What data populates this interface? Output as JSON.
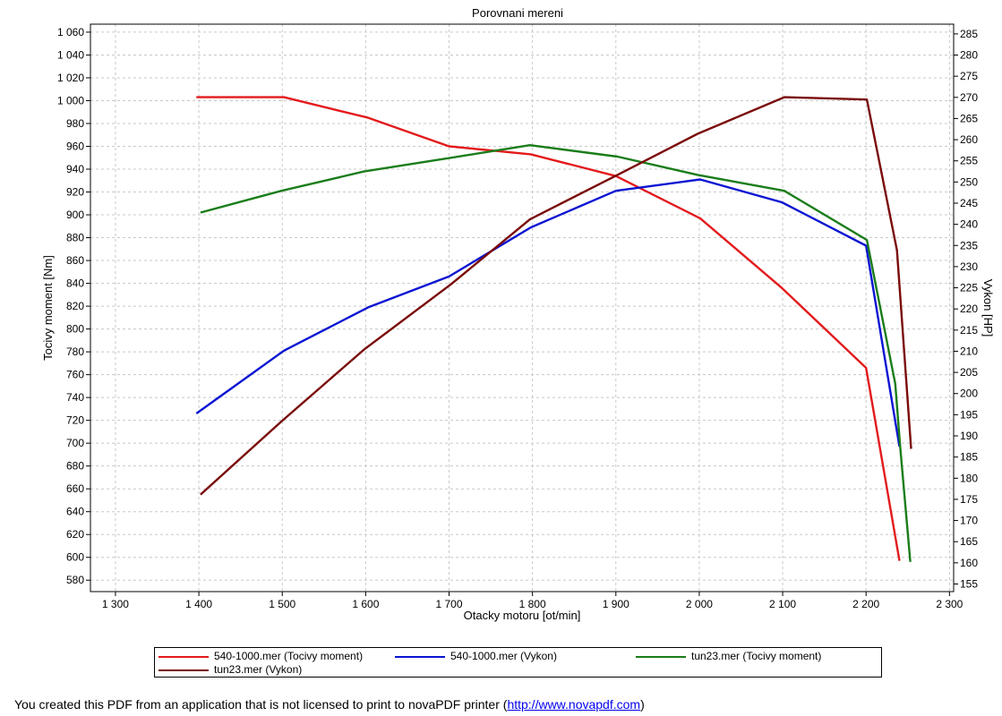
{
  "chart_data": {
    "type": "line",
    "title": "Porovnani mereni",
    "xlabel": "Otacky motoru [ot/min]",
    "ylabel_left": "Tocivy moment [Nm]",
    "ylabel_right": "Vykon [HP]",
    "xlim": [
      1270,
      2305
    ],
    "ylim_left": [
      570,
      1067
    ],
    "ylim_right": [
      153.2,
      287.3
    ],
    "x_ticks": [
      1300,
      1400,
      1500,
      1600,
      1700,
      1800,
      1900,
      2000,
      2100,
      2200,
      2300
    ],
    "x_tick_labels": [
      "1 300",
      "1 400",
      "1 500",
      "1 600",
      "1 700",
      "1 800",
      "1 900",
      "2 000",
      "2 100",
      "2 200",
      "2 300"
    ],
    "y_left_ticks": [
      580,
      600,
      620,
      640,
      660,
      680,
      700,
      720,
      740,
      760,
      780,
      800,
      820,
      840,
      860,
      880,
      900,
      920,
      940,
      960,
      980,
      1000,
      1020,
      1040,
      1060
    ],
    "y_left_tick_labels": [
      "580",
      "600",
      "620",
      "640",
      "660",
      "680",
      "700",
      "720",
      "740",
      "760",
      "780",
      "800",
      "820",
      "840",
      "860",
      "880",
      "900",
      "920",
      "940",
      "960",
      "980",
      "1 000",
      "1 020",
      "1 040",
      "1 060"
    ],
    "y_right_ticks": [
      155,
      160,
      165,
      170,
      175,
      180,
      185,
      190,
      195,
      200,
      205,
      210,
      215,
      220,
      225,
      230,
      235,
      240,
      245,
      250,
      255,
      260,
      265,
      270,
      275,
      280,
      285
    ],
    "y_right_tick_labels": [
      "155",
      "160",
      "165",
      "170",
      "175",
      "180",
      "185",
      "190",
      "195",
      "200",
      "205",
      "210",
      "215",
      "220",
      "225",
      "230",
      "235",
      "240",
      "245",
      "250",
      "255",
      "260",
      "265",
      "270",
      "275",
      "280",
      "285"
    ],
    "grid": true,
    "legend_position": "bottom",
    "series": [
      {
        "name": "540-1000.mer  (Tocivy moment)",
        "axis": "left",
        "color": "#e31a1c",
        "x": [
          1397,
          1502,
          1603,
          1700,
          1798,
          1900,
          2001,
          2099,
          2200,
          2240
        ],
        "y": [
          1003,
          1003,
          985,
          960,
          953,
          934,
          897,
          836,
          766,
          597
        ]
      },
      {
        "name": "540-1000.mer  (Vykon)",
        "axis": "left",
        "color": "#0a14d2",
        "x": [
          1397,
          1502,
          1603,
          1700,
          1798,
          1900,
          2001,
          2099,
          2200,
          2240
        ],
        "y": [
          726,
          781,
          819,
          846,
          889,
          921,
          931,
          911,
          873,
          697
        ]
      },
      {
        "name": "tun23.mer  (Tocivy moment)",
        "axis": "left",
        "color": "#1a7d1a",
        "x": [
          1402,
          1499,
          1598,
          1702,
          1797,
          1902,
          1998,
          2102,
          2201,
          2235,
          2241,
          2253
        ],
        "y": [
          902,
          921,
          938,
          950,
          961,
          951,
          935,
          921,
          878,
          752,
          696,
          596
        ]
      },
      {
        "name": "tun23.mer  (Vykon)",
        "axis": "left",
        "color": "#7a0a0a",
        "x": [
          1402,
          1499,
          1598,
          1702,
          1797,
          1902,
          1998,
          2102,
          2201,
          2237,
          2254
        ],
        "y": [
          655,
          719,
          782,
          839,
          896,
          935,
          971,
          1003,
          1001,
          869,
          695
        ]
      }
    ]
  },
  "footer": {
    "text": "You created this PDF from an application that is not licensed to print to novaPDF printer (",
    "link": "http://www.novapdf.com",
    "end": ")"
  }
}
